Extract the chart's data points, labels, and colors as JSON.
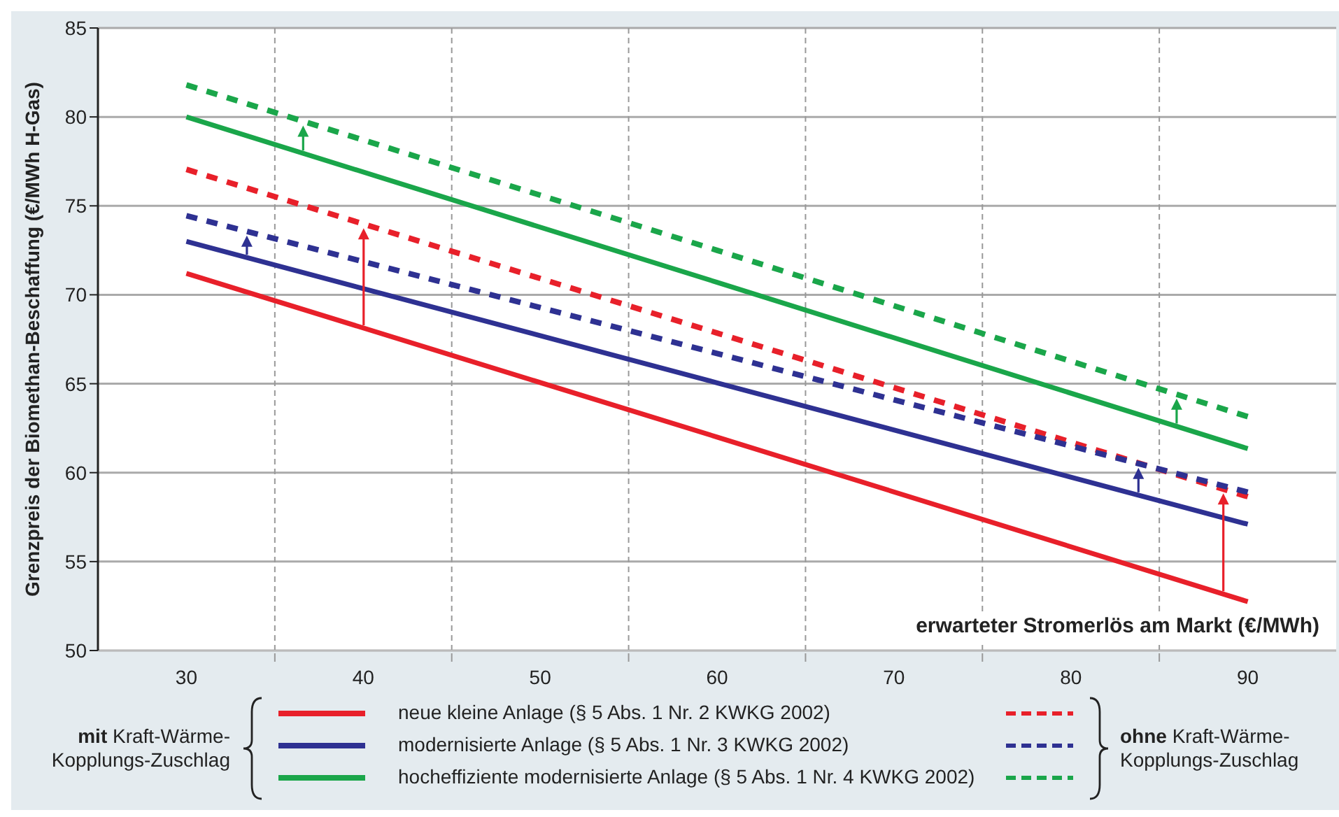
{
  "chart_data": {
    "type": "line",
    "xlabel": "erwarteter Stromerlös am Markt (€/MWh)",
    "ylabel": "Grenzpreis der Biomethan-Beschaffung (€/MWh H-Gas)",
    "x": [
      30,
      60,
      90
    ],
    "series": [
      {
        "name": "neue kleine Anlage (§ 5 Abs. 1 Nr. 2 KWKG 2002)",
        "color": "#e8202a",
        "values": [
          71.2,
          62.0,
          52.75
        ],
        "line_style": "solid"
      },
      {
        "name": "modernisierte Anlage (§ 5 Abs. 1 Nr. 3 KWKG 2002)",
        "color": "#2e3192",
        "values": [
          73.0,
          65.05,
          57.1
        ],
        "line_style": "solid"
      },
      {
        "name": "hocheffiziente modernisierte Anlage (§ 5 Abs. 1 Nr. 4 KWKG 2002)",
        "color": "#1aa64a",
        "values": [
          80.0,
          70.7,
          61.35
        ],
        "line_style": "solid"
      },
      {
        "color": "#e8202a",
        "values": [
          77.05,
          67.85,
          58.65
        ],
        "line_style": "dashed"
      },
      {
        "color": "#2e3192",
        "values": [
          74.45,
          66.7,
          58.9
        ],
        "line_style": "dashed"
      },
      {
        "color": "#1aa64a",
        "values": [
          81.8,
          72.5,
          63.15
        ],
        "line_style": "dashed"
      }
    ],
    "xlim": [
      25,
      95
    ],
    "xticks": [
      30,
      {
        "value": 35,
        "label": null
      },
      40,
      {
        "value": 45,
        "label": null
      },
      50,
      {
        "value": 55,
        "label": null
      },
      60,
      {
        "value": 65,
        "label": null
      },
      70,
      {
        "value": 75,
        "label": null
      },
      80,
      {
        "value": 85,
        "label": null
      },
      90
    ],
    "ylim": [
      50,
      85
    ],
    "yticks": [
      50,
      55,
      60,
      65,
      70,
      75,
      80,
      85
    ],
    "grid": true,
    "legend": "bottom",
    "marker": "none",
    "annotations": [
      "mit Kraft-Wärme-Kopplungs-Zuschlag",
      "ohne Kraft-Wärme-Kopplungs-Zuschlag"
    ]
  }
}
